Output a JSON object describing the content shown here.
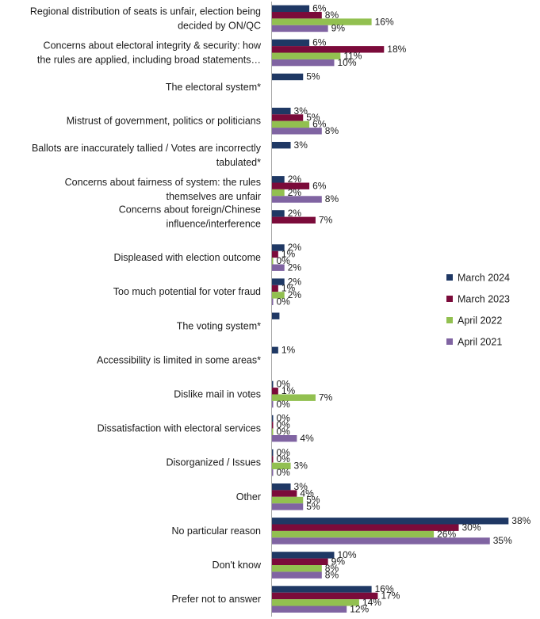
{
  "chart_data": {
    "type": "bar",
    "orientation": "horizontal",
    "value_suffix": "%",
    "xlim": [
      0,
      40
    ],
    "grid": false,
    "legend_position": "right",
    "series": [
      {
        "name": "March 2024",
        "color": "#1F3864",
        "values": [
          6,
          6,
          5,
          3,
          3,
          2,
          2,
          2,
          2,
          null,
          1,
          0,
          0,
          0,
          3,
          38,
          10,
          16
        ]
      },
      {
        "name": "March 2023",
        "color": "#7B0B3A",
        "values": [
          8,
          18,
          null,
          5,
          null,
          6,
          7,
          1,
          1,
          null,
          null,
          1,
          0,
          0,
          4,
          30,
          9,
          17
        ]
      },
      {
        "name": "April 2022",
        "color": "#92C050",
        "values": [
          16,
          11,
          null,
          6,
          null,
          2,
          null,
          0,
          2,
          null,
          null,
          7,
          0,
          3,
          5,
          26,
          8,
          14
        ]
      },
      {
        "name": "April 2021",
        "color": "#8064A2",
        "values": [
          9,
          10,
          null,
          8,
          null,
          8,
          null,
          2,
          0,
          null,
          null,
          0,
          4,
          0,
          5,
          35,
          8,
          12
        ]
      }
    ],
    "special_bars": [
      {
        "category_index": 9,
        "series_index": 0,
        "value": 1.2
      }
    ],
    "categories": [
      [
        "Regional distribution of seats is unfair, election being",
        "decided by ON/QC"
      ],
      [
        "Concerns about electoral integrity & security: how",
        "the rules are applied, including broad statements…"
      ],
      [
        "The electoral system*"
      ],
      [
        "Mistrust of government, politics or politicians"
      ],
      [
        "Ballots are inaccurately tallied / Votes are incorrectly",
        "tabulated*"
      ],
      [
        "Concerns about fairness of system: the rules",
        "themselves are unfair"
      ],
      [
        "Concerns about foreign/Chinese",
        "influence/interference"
      ],
      [
        "Displeased with election outcome"
      ],
      [
        "Too much potential for voter fraud"
      ],
      [
        "The voting system*"
      ],
      [
        "Accessibility is limited in some areas*"
      ],
      [
        "Dislike mail in votes"
      ],
      [
        "Dissatisfaction with electoral services"
      ],
      [
        "Disorganized / Issues"
      ],
      [
        "Other"
      ],
      [
        "No particular reason"
      ],
      [
        "Don't know"
      ],
      [
        "Prefer not to answer"
      ]
    ]
  }
}
